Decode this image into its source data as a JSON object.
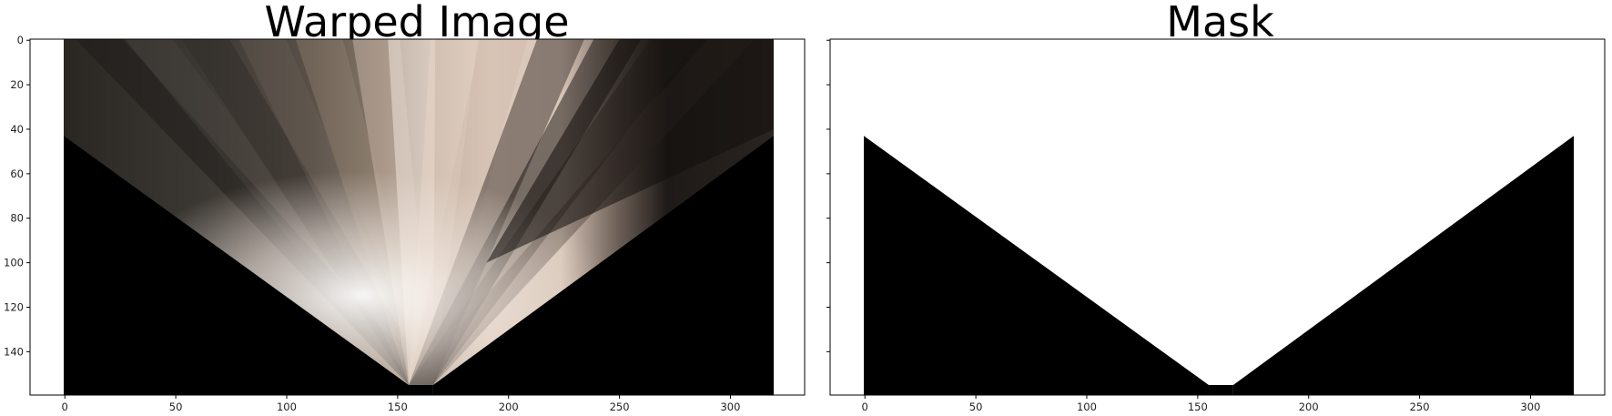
{
  "panels": [
    {
      "title": "Warped Image",
      "xticks": [
        0,
        50,
        100,
        150,
        200,
        250,
        300
      ],
      "yticks": [
        0,
        20,
        40,
        60,
        80,
        100,
        120,
        140
      ],
      "xlim": [
        0,
        320
      ],
      "ylim": [
        160,
        0
      ],
      "show_ytick_labels": true
    },
    {
      "title": "Mask",
      "xticks": [
        0,
        50,
        100,
        150,
        200,
        250,
        300
      ],
      "yticks": [
        0,
        20,
        40,
        60,
        80,
        100,
        120,
        140
      ],
      "xlim": [
        0,
        320
      ],
      "ylim": [
        160,
        0
      ],
      "show_ytick_labels": false
    }
  ],
  "colors": {
    "mask_white": "#ffffff",
    "mask_black": "#000000",
    "frame": "#000000"
  }
}
